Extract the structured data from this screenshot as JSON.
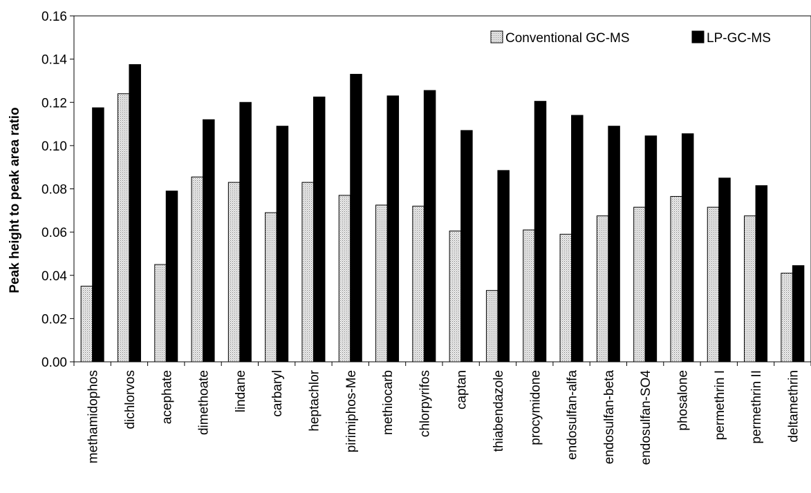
{
  "chart_data": {
    "type": "bar",
    "title": "",
    "xlabel": "",
    "ylabel": "Peak height to peak area ratio",
    "ylim": [
      0,
      0.16
    ],
    "yticks": [
      "0.00",
      "0.02",
      "0.04",
      "0.06",
      "0.08",
      "0.10",
      "0.12",
      "0.14",
      "0.16"
    ],
    "grid": false,
    "legend_position": "top-right",
    "categories": [
      "methamidophos",
      "dichlorvos",
      "acephate",
      "dimethoate",
      "lindane",
      "carbaryl",
      "heptachlor",
      "pirimiphos-Me",
      "methiocarb",
      "chlorpyrifos",
      "captan",
      "thiabendazole",
      "procymidone",
      "endosulfan-alfa",
      "endosulfan-beta",
      "endosulfan-SO4",
      "phosalone",
      "permethrin I",
      "permethrin II",
      "deltamethrin"
    ],
    "series": [
      {
        "name": "Conventional GC-MS",
        "fill": "dotted-gray",
        "values": [
          0.035,
          0.124,
          0.045,
          0.0855,
          0.083,
          0.069,
          0.083,
          0.077,
          0.0725,
          0.072,
          0.0605,
          0.033,
          0.061,
          0.059,
          0.0675,
          0.0715,
          0.0765,
          0.0715,
          0.0675,
          0.041
        ]
      },
      {
        "name": "LP-GC-MS",
        "fill": "#000000",
        "values": [
          0.1175,
          0.1375,
          0.079,
          0.112,
          0.12,
          0.109,
          0.1225,
          0.133,
          0.123,
          0.1255,
          0.107,
          0.0885,
          0.1205,
          0.114,
          0.109,
          0.1045,
          0.1055,
          0.085,
          0.0815,
          0.0445
        ]
      }
    ]
  }
}
